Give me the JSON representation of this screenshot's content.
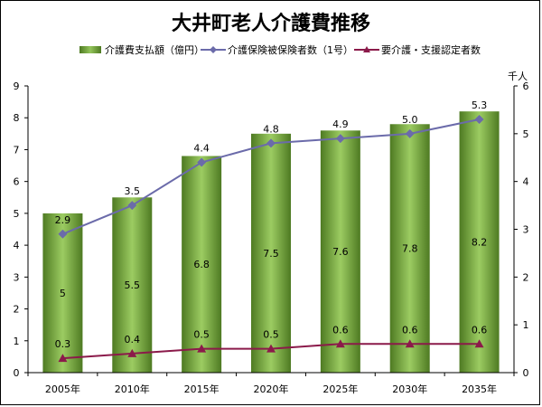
{
  "chart_data": {
    "type": "bar",
    "title": "大井町老人介護費推移",
    "categories": [
      "2005年",
      "2010年",
      "2015年",
      "2020年",
      "2025年",
      "2030年",
      "2035年"
    ],
    "series": [
      {
        "name": "介護費支払額（億円）",
        "type": "bar",
        "axis": "left",
        "color": "#6f9e3a",
        "values": [
          5,
          5.5,
          6.8,
          7.5,
          7.6,
          7.8,
          8.2
        ],
        "labels": [
          "5",
          "5.5",
          "6.8",
          "7.5",
          "7.6",
          "7.8",
          "8.2"
        ]
      },
      {
        "name": "介護保険被保険者数（1号）",
        "type": "line",
        "axis": "right",
        "color": "#6b6baa",
        "marker": "diamond",
        "values": [
          2.9,
          3.5,
          4.4,
          4.8,
          4.9,
          5.0,
          5.3
        ],
        "labels": [
          "2.9",
          "3.5",
          "4.4",
          "4.8",
          "4.9",
          "5.0",
          "5.3"
        ]
      },
      {
        "name": "要介護・支援認定者数",
        "type": "line",
        "axis": "right",
        "color": "#8b1a4a",
        "marker": "triangle",
        "values": [
          0.3,
          0.4,
          0.5,
          0.5,
          0.6,
          0.6,
          0.6
        ],
        "labels": [
          "0.3",
          "0.4",
          "0.5",
          "0.5",
          "0.6",
          "0.6",
          "0.6"
        ]
      }
    ],
    "y_left": {
      "ylim": [
        0,
        9
      ],
      "ticks": [
        "0",
        "1",
        "2",
        "3",
        "4",
        "5",
        "6",
        "7",
        "8",
        "9"
      ]
    },
    "y_right": {
      "ylim": [
        0,
        6
      ],
      "ticks": [
        "0",
        "1",
        "2",
        "3",
        "4",
        "5",
        "6"
      ],
      "unit": "千人"
    },
    "grid": false,
    "legend": "top"
  }
}
